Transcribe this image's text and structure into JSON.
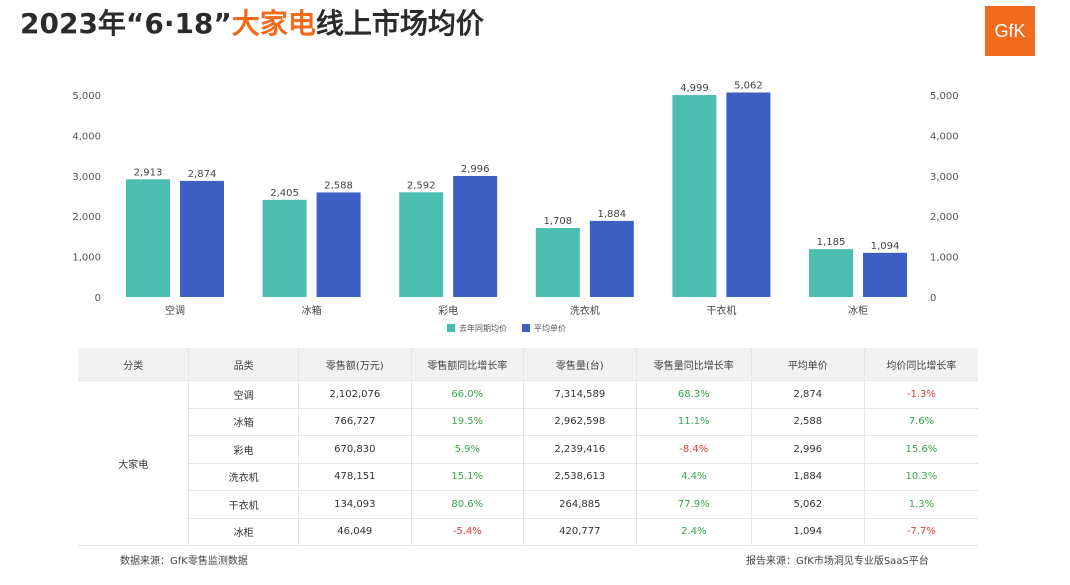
{
  "title": {
    "part1": "2023年“6·18”",
    "highlight": "大家电",
    "part2": "线上市场均价"
  },
  "logo_text": "GfK",
  "colors": {
    "series1": "#4dbfb0",
    "series2": "#3e5fc3",
    "accent": "#f26a1b",
    "positive": "#3aa64a",
    "negative": "#e03c3c"
  },
  "chart_data": {
    "type": "bar",
    "categories": [
      "空调",
      "冰箱",
      "彩电",
      "洗衣机",
      "干衣机",
      "冰柜"
    ],
    "series": [
      {
        "name": "去年同期均价",
        "values": [
          2913,
          2405,
          2592,
          1708,
          4999,
          1185
        ]
      },
      {
        "name": "平均单价",
        "values": [
          2874,
          2588,
          2996,
          1884,
          5062,
          1094
        ]
      }
    ],
    "data_labels": [
      [
        "2,913",
        "2,405",
        "2,592",
        "1,708",
        "4,999",
        "1,185"
      ],
      [
        "2,874",
        "2,588",
        "2,996",
        "1,884",
        "5,062",
        "1,094"
      ]
    ],
    "yticks": [
      "0",
      "1,000",
      "2,000",
      "3,000",
      "4,000",
      "5,000"
    ],
    "ytick_values": [
      0,
      1000,
      2000,
      3000,
      4000,
      5000
    ],
    "ylim": [
      0,
      5000
    ],
    "dual_axis_labels": true,
    "legend_position": "bottom-center",
    "grid": false
  },
  "table": {
    "headers": [
      "分类",
      "品类",
      "零售额(万元)",
      "零售额同比增长率",
      "零售量(台)",
      "零售量同比增长率",
      "平均单价",
      "均价同比增长率"
    ],
    "group_label": "大家电",
    "rows": [
      {
        "cat": "空调",
        "sales": "2,102,076",
        "sales_yoy": "66.0%",
        "vol": "7,314,589",
        "vol_yoy": "68.3%",
        "price": "2,874",
        "price_yoy": "-1.3%"
      },
      {
        "cat": "冰箱",
        "sales": "766,727",
        "sales_yoy": "19.5%",
        "vol": "2,962,598",
        "vol_yoy": "11.1%",
        "price": "2,588",
        "price_yoy": "7.6%"
      },
      {
        "cat": "彩电",
        "sales": "670,830",
        "sales_yoy": "5.9%",
        "vol": "2,239,416",
        "vol_yoy": "-8.4%",
        "price": "2,996",
        "price_yoy": "15.6%"
      },
      {
        "cat": "洗衣机",
        "sales": "478,151",
        "sales_yoy": "15.1%",
        "vol": "2,538,613",
        "vol_yoy": "4.4%",
        "price": "1,884",
        "price_yoy": "10.3%"
      },
      {
        "cat": "干衣机",
        "sales": "134,093",
        "sales_yoy": "80.6%",
        "vol": "264,885",
        "vol_yoy": "77.9%",
        "price": "5,062",
        "price_yoy": "1.3%"
      },
      {
        "cat": "冰柜",
        "sales": "46,049",
        "sales_yoy": "-5.4%",
        "vol": "420,777",
        "vol_yoy": "2.4%",
        "price": "1,094",
        "price_yoy": "-7.7%"
      }
    ]
  },
  "footer": {
    "left": "数据来源：GfK零售监测数据",
    "right": "报告来源：GfK市场洞见专业版SaaS平台"
  }
}
